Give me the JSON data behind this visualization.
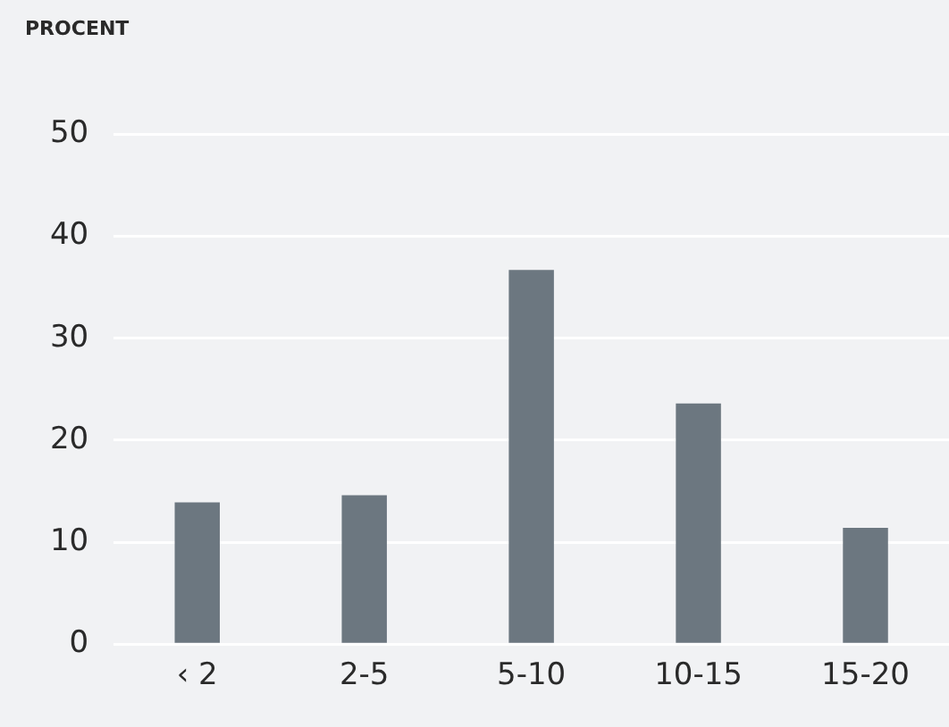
{
  "chart_data": {
    "type": "bar",
    "ylabel": "PROCENT",
    "categories": [
      "‹ 2",
      "2-5",
      "5-10",
      "10-15",
      "15-20"
    ],
    "values": [
      13.9,
      14.6,
      36.7,
      23.6,
      11.4
    ],
    "color": "#6c7780",
    "ylim": [
      0,
      50
    ],
    "yticks": [
      0,
      10,
      20,
      30,
      40,
      50
    ],
    "grid": "y",
    "legend": false
  }
}
